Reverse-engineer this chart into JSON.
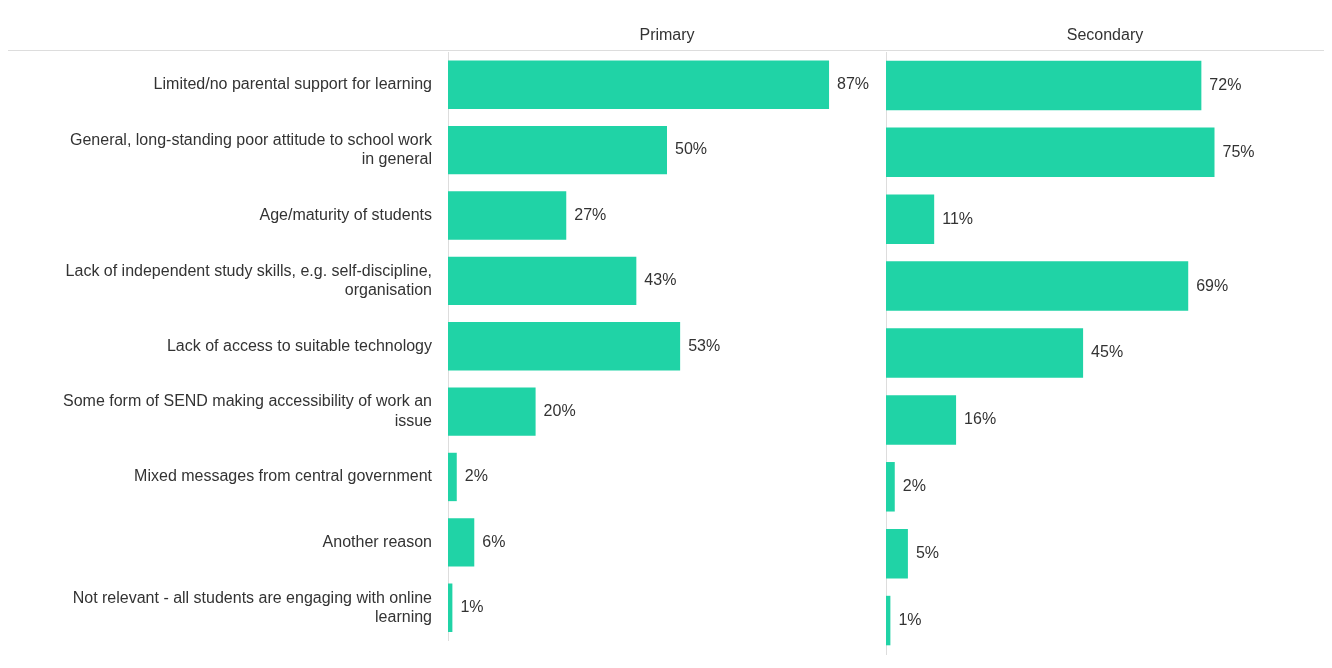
{
  "chart_data": [
    {
      "type": "bar",
      "orientation": "horizontal",
      "title": "Primary",
      "categories": [
        "Limited/no parental support for learning",
        "General, long-standing poor attitude to school work in general",
        "Age/maturity of students",
        "Lack of independent study skills, e.g. self-discipline, organisation",
        "Lack of access to suitable technology",
        "Some form of SEND making accessibility of work an issue",
        "Mixed messages from central government",
        "Another reason",
        "Not relevant - all students are engaging with online learning"
      ],
      "values": [
        87,
        50,
        27,
        43,
        53,
        20,
        2,
        6,
        1
      ],
      "value_labels": [
        "87%",
        "50%",
        "27%",
        "43%",
        "53%",
        "20%",
        "2%",
        "6%",
        "1%"
      ],
      "color": "#20d3a6",
      "xlim": [
        0,
        100
      ],
      "tick_labels": "y",
      "legend": false
    },
    {
      "type": "bar",
      "orientation": "horizontal",
      "title": "Secondary",
      "categories": [
        null,
        null,
        null,
        null,
        null,
        null,
        null,
        null,
        null
      ],
      "values": [
        72,
        75,
        11,
        69,
        45,
        16,
        2,
        5,
        1
      ],
      "value_labels": [
        "72%",
        "75%",
        "11%",
        "69%",
        "45%",
        "16%",
        "2%",
        "5%",
        "1%"
      ],
      "color": "#20d3a6",
      "xlim": [
        0,
        100
      ],
      "tick_labels": false,
      "legend": false
    }
  ]
}
